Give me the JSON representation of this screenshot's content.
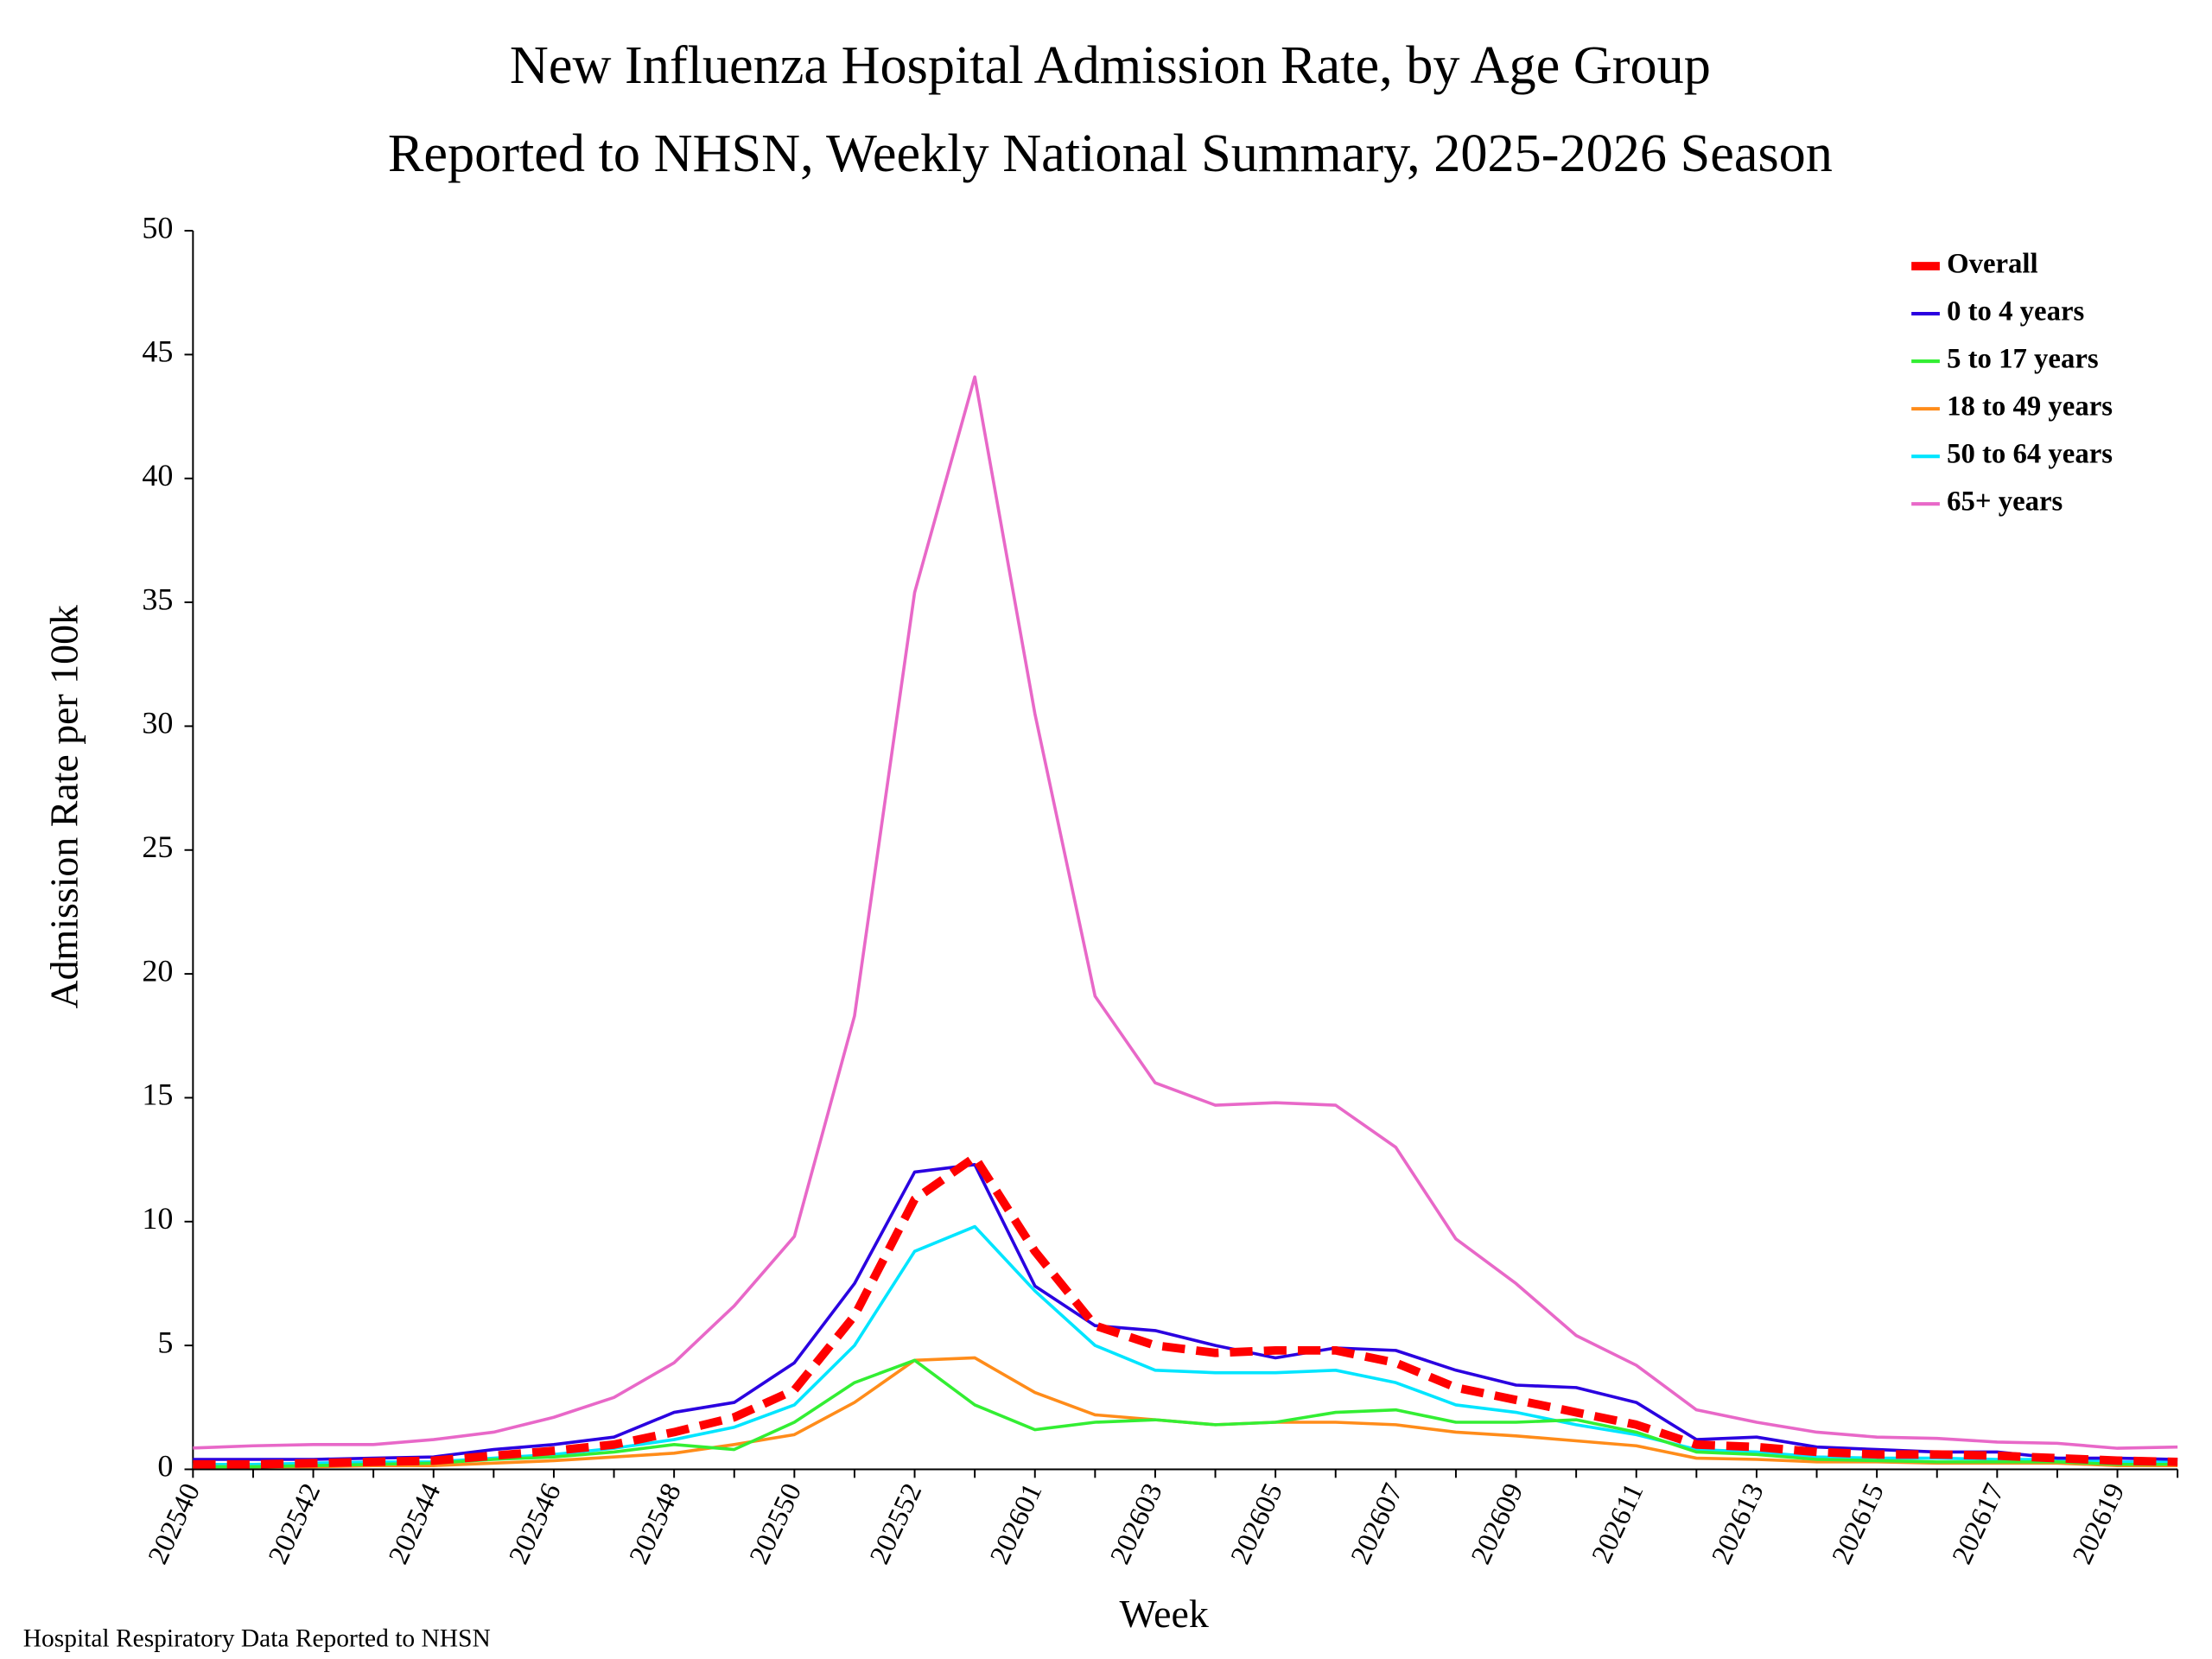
{
  "chart_data": {
    "type": "line",
    "title": "New Influenza Hospital Admission Rate, by Age Group",
    "subtitle": "Reported to NHSN, Weekly National Summary, 2025-2026 Season",
    "x_label": "Week",
    "y_label": "Admission Rate per 100k",
    "footnote": "Hospital Respiratory Data Reported to NHSN",
    "legend": "top-right",
    "categories": [
      "202540",
      null,
      "202542",
      null,
      "202544",
      null,
      "202546",
      null,
      "202548",
      null,
      "202550",
      null,
      "202552",
      null,
      "202601",
      null,
      "202603",
      null,
      "202605",
      null,
      "202607",
      null,
      "202609",
      null,
      "202611",
      null,
      "202613",
      null,
      "202615",
      null,
      "202617",
      null,
      "202619",
      null
    ],
    "ylim": [
      0,
      50
    ],
    "yticks": [
      0,
      5,
      10,
      15,
      20,
      25,
      30,
      35,
      40,
      45,
      50
    ],
    "series": [
      {
        "name": "Overall",
        "color": "#ff0000",
        "dashed": true,
        "values": [
          0.2,
          0.2,
          0.25,
          0.3,
          0.35,
          0.55,
          0.75,
          1.0,
          1.5,
          2.1,
          3.2,
          6.2,
          10.9,
          12.6,
          8.8,
          5.8,
          5.0,
          4.7,
          4.8,
          4.8,
          4.3,
          3.3,
          2.8,
          2.3,
          1.8,
          1.0,
          0.9,
          0.7,
          0.6,
          0.6,
          0.55,
          0.45,
          0.35,
          0.3
        ]
      },
      {
        "name": "0 to 4 years",
        "color": "#2a00e0",
        "values": [
          0.4,
          0.4,
          0.4,
          0.45,
          0.5,
          0.8,
          1.0,
          1.3,
          2.3,
          2.7,
          4.3,
          7.5,
          12.0,
          12.3,
          7.4,
          5.8,
          5.6,
          5.0,
          4.5,
          4.9,
          4.8,
          4.0,
          3.4,
          3.3,
          2.7,
          1.2,
          1.3,
          0.9,
          0.8,
          0.7,
          0.7,
          0.45,
          0.45,
          0.4
        ]
      },
      {
        "name": "5 to 17 years",
        "color": "#33ee33",
        "values": [
          0.1,
          0.1,
          0.15,
          0.2,
          0.25,
          0.4,
          0.5,
          0.7,
          1.0,
          0.8,
          1.9,
          3.5,
          4.4,
          2.6,
          1.6,
          1.9,
          2.0,
          1.8,
          1.9,
          2.3,
          2.4,
          1.9,
          1.9,
          2.0,
          1.5,
          0.7,
          0.6,
          0.4,
          0.35,
          0.3,
          0.3,
          0.3,
          0.2,
          0.2
        ]
      },
      {
        "name": "18 to 49 years",
        "color": "#ff8c1a",
        "values": [
          0.1,
          0.1,
          0.1,
          0.15,
          0.15,
          0.25,
          0.35,
          0.5,
          0.65,
          1.0,
          1.4,
          2.7,
          4.4,
          4.5,
          3.1,
          2.2,
          2.0,
          1.8,
          1.9,
          1.9,
          1.8,
          1.5,
          1.35,
          1.15,
          0.95,
          0.45,
          0.4,
          0.3,
          0.3,
          0.25,
          0.25,
          0.25,
          0.15,
          0.15
        ]
      },
      {
        "name": "50 to 64 years",
        "color": "#00e5ff",
        "values": [
          0.2,
          0.2,
          0.25,
          0.3,
          0.3,
          0.45,
          0.6,
          0.85,
          1.2,
          1.7,
          2.6,
          5.0,
          8.8,
          9.8,
          7.2,
          5.0,
          4.0,
          3.9,
          3.9,
          4.0,
          3.5,
          2.6,
          2.3,
          1.8,
          1.4,
          0.8,
          0.7,
          0.5,
          0.45,
          0.45,
          0.4,
          0.4,
          0.3,
          0.3
        ]
      },
      {
        "name": "65+ years",
        "color": "#e868c8",
        "values": [
          0.86,
          0.95,
          1.0,
          1.0,
          1.2,
          1.5,
          2.1,
          2.9,
          4.3,
          6.6,
          9.4,
          18.3,
          35.4,
          44.1,
          30.5,
          19.1,
          15.6,
          14.7,
          14.8,
          14.7,
          13.0,
          9.3,
          7.5,
          5.4,
          4.2,
          2.4,
          1.9,
          1.5,
          1.3,
          1.25,
          1.1,
          1.05,
          0.85,
          0.9
        ]
      }
    ]
  }
}
